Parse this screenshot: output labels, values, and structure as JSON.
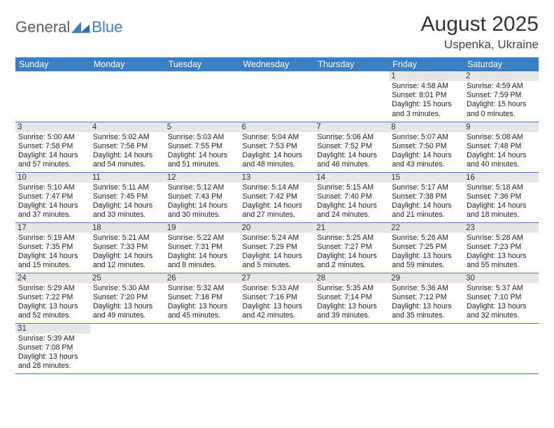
{
  "logo": {
    "part1": "General",
    "part2": "Blue"
  },
  "title": "August 2025",
  "location": "Uspenka, Ukraine",
  "colors": {
    "accent": "#3b7fc4",
    "daybar": "#e7e7e7",
    "text": "#222",
    "header_text": "#ffffff"
  },
  "weekdays": [
    "Sunday",
    "Monday",
    "Tuesday",
    "Wednesday",
    "Thursday",
    "Friday",
    "Saturday"
  ],
  "grid": [
    [
      {
        "empty": true
      },
      {
        "empty": true
      },
      {
        "empty": true
      },
      {
        "empty": true
      },
      {
        "empty": true
      },
      {
        "day": "1",
        "sunrise": "4:58 AM",
        "sunset": "8:01 PM",
        "daylight": "15 hours and 3 minutes."
      },
      {
        "day": "2",
        "sunrise": "4:59 AM",
        "sunset": "7:59 PM",
        "daylight": "15 hours and 0 minutes."
      }
    ],
    [
      {
        "day": "3",
        "sunrise": "5:00 AM",
        "sunset": "7:58 PM",
        "daylight": "14 hours and 57 minutes."
      },
      {
        "day": "4",
        "sunrise": "5:02 AM",
        "sunset": "7:56 PM",
        "daylight": "14 hours and 54 minutes."
      },
      {
        "day": "5",
        "sunrise": "5:03 AM",
        "sunset": "7:55 PM",
        "daylight": "14 hours and 51 minutes."
      },
      {
        "day": "6",
        "sunrise": "5:04 AM",
        "sunset": "7:53 PM",
        "daylight": "14 hours and 48 minutes."
      },
      {
        "day": "7",
        "sunrise": "5:06 AM",
        "sunset": "7:52 PM",
        "daylight": "14 hours and 46 minutes."
      },
      {
        "day": "8",
        "sunrise": "5:07 AM",
        "sunset": "7:50 PM",
        "daylight": "14 hours and 43 minutes."
      },
      {
        "day": "9",
        "sunrise": "5:08 AM",
        "sunset": "7:48 PM",
        "daylight": "14 hours and 40 minutes."
      }
    ],
    [
      {
        "day": "10",
        "sunrise": "5:10 AM",
        "sunset": "7:47 PM",
        "daylight": "14 hours and 37 minutes."
      },
      {
        "day": "11",
        "sunrise": "5:11 AM",
        "sunset": "7:45 PM",
        "daylight": "14 hours and 33 minutes."
      },
      {
        "day": "12",
        "sunrise": "5:12 AM",
        "sunset": "7:43 PM",
        "daylight": "14 hours and 30 minutes."
      },
      {
        "day": "13",
        "sunrise": "5:14 AM",
        "sunset": "7:42 PM",
        "daylight": "14 hours and 27 minutes."
      },
      {
        "day": "14",
        "sunrise": "5:15 AM",
        "sunset": "7:40 PM",
        "daylight": "14 hours and 24 minutes."
      },
      {
        "day": "15",
        "sunrise": "5:17 AM",
        "sunset": "7:38 PM",
        "daylight": "14 hours and 21 minutes."
      },
      {
        "day": "16",
        "sunrise": "5:18 AM",
        "sunset": "7:36 PM",
        "daylight": "14 hours and 18 minutes."
      }
    ],
    [
      {
        "day": "17",
        "sunrise": "5:19 AM",
        "sunset": "7:35 PM",
        "daylight": "14 hours and 15 minutes."
      },
      {
        "day": "18",
        "sunrise": "5:21 AM",
        "sunset": "7:33 PM",
        "daylight": "14 hours and 12 minutes."
      },
      {
        "day": "19",
        "sunrise": "5:22 AM",
        "sunset": "7:31 PM",
        "daylight": "14 hours and 8 minutes."
      },
      {
        "day": "20",
        "sunrise": "5:24 AM",
        "sunset": "7:29 PM",
        "daylight": "14 hours and 5 minutes."
      },
      {
        "day": "21",
        "sunrise": "5:25 AM",
        "sunset": "7:27 PM",
        "daylight": "14 hours and 2 minutes."
      },
      {
        "day": "22",
        "sunrise": "5:26 AM",
        "sunset": "7:25 PM",
        "daylight": "13 hours and 59 minutes."
      },
      {
        "day": "23",
        "sunrise": "5:28 AM",
        "sunset": "7:23 PM",
        "daylight": "13 hours and 55 minutes."
      }
    ],
    [
      {
        "day": "24",
        "sunrise": "5:29 AM",
        "sunset": "7:22 PM",
        "daylight": "13 hours and 52 minutes."
      },
      {
        "day": "25",
        "sunrise": "5:30 AM",
        "sunset": "7:20 PM",
        "daylight": "13 hours and 49 minutes."
      },
      {
        "day": "26",
        "sunrise": "5:32 AM",
        "sunset": "7:18 PM",
        "daylight": "13 hours and 45 minutes."
      },
      {
        "day": "27",
        "sunrise": "5:33 AM",
        "sunset": "7:16 PM",
        "daylight": "13 hours and 42 minutes."
      },
      {
        "day": "28",
        "sunrise": "5:35 AM",
        "sunset": "7:14 PM",
        "daylight": "13 hours and 39 minutes."
      },
      {
        "day": "29",
        "sunrise": "5:36 AM",
        "sunset": "7:12 PM",
        "daylight": "13 hours and 35 minutes."
      },
      {
        "day": "30",
        "sunrise": "5:37 AM",
        "sunset": "7:10 PM",
        "daylight": "13 hours and 32 minutes."
      }
    ],
    [
      {
        "day": "31",
        "sunrise": "5:39 AM",
        "sunset": "7:08 PM",
        "daylight": "13 hours and 28 minutes."
      },
      {
        "blank": true
      },
      {
        "blank": true
      },
      {
        "blank": true
      },
      {
        "blank": true
      },
      {
        "blank": true
      },
      {
        "blank": true
      }
    ]
  ],
  "labels": {
    "sunrise": "Sunrise: ",
    "sunset": "Sunset: ",
    "daylight": "Daylight: "
  }
}
